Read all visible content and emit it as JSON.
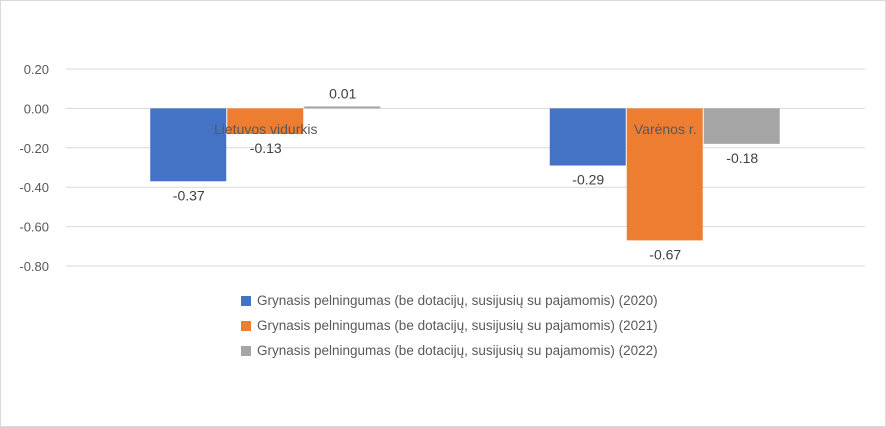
{
  "chart_data": {
    "type": "bar",
    "categories": [
      "Lietuvos vidurkis",
      "Varėnos r."
    ],
    "series": [
      {
        "name": "Grynasis pelningumas (be dotacijų, susijusių su pajamomis) (2020)",
        "values": [
          -0.37,
          -0.29
        ],
        "color": "#4472C4"
      },
      {
        "name": "Grynasis pelningumas (be dotacijų, susijusių su pajamomis) (2021)",
        "values": [
          -0.13,
          -0.67
        ],
        "color": "#ED7D31"
      },
      {
        "name": "Grynasis pelningumas (be dotacijų, susijusių su pajamomis) (2022)",
        "values": [
          0.01,
          -0.18
        ],
        "color": "#A5A5A5"
      }
    ],
    "data_labels": [
      [
        "-0.37",
        "-0.29"
      ],
      [
        "-0.13",
        "-0.67"
      ],
      [
        "0.01",
        "-0.18"
      ]
    ],
    "y_ticks": [
      "0.20",
      "0.00",
      "-0.20",
      "-0.40",
      "-0.60",
      "-0.80"
    ],
    "ylim": [
      -0.8,
      0.2
    ],
    "grid": true,
    "legend": "bottom",
    "title": "",
    "xlabel": "",
    "ylabel": ""
  }
}
